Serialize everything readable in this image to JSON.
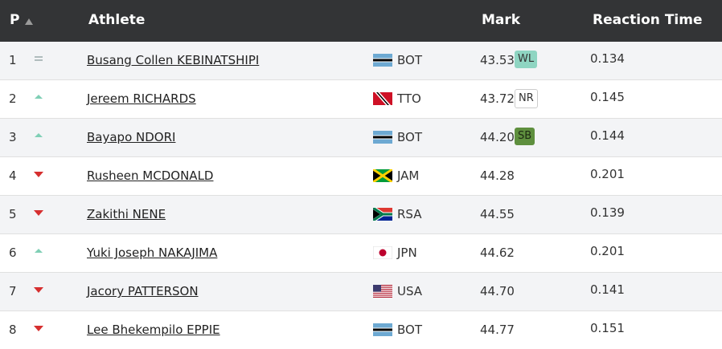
{
  "table": {
    "headers": [
      "P",
      "Athlete",
      "Mark",
      "Reaction Time"
    ],
    "rows": [
      {
        "position": "1",
        "trend": "same",
        "athlete": "Busang Collen KEBINATSHIPI",
        "country": "BOT",
        "mark": "43.53",
        "badge": "WL",
        "reaction": "0.134"
      },
      {
        "position": "2",
        "trend": "up",
        "athlete": "Jereem RICHARDS",
        "country": "TTO",
        "mark": "43.72",
        "badge": "NR",
        "reaction": "0.145"
      },
      {
        "position": "3",
        "trend": "up",
        "athlete": "Bayapo NDORI",
        "country": "BOT",
        "mark": "44.20",
        "badge": "SB",
        "reaction": "0.144"
      },
      {
        "position": "4",
        "trend": "down",
        "athlete": "Rusheen MCDONALD",
        "country": "JAM",
        "mark": "44.28",
        "reaction": "0.201"
      },
      {
        "position": "5",
        "trend": "down",
        "athlete": "Zakithi NENE",
        "country": "RSA",
        "mark": "44.55",
        "reaction": "0.139"
      },
      {
        "position": "6",
        "trend": "up",
        "athlete": "Yuki Joseph NAKAJIMA",
        "country": "JPN",
        "mark": "44.62",
        "reaction": "0.201"
      },
      {
        "position": "7",
        "trend": "down",
        "athlete": "Jacory PATTERSON",
        "country": "USA",
        "mark": "44.70",
        "reaction": "0.141"
      },
      {
        "position": "8",
        "trend": "down",
        "athlete": "Lee Bhekempilo EPPIE",
        "country": "BOT",
        "mark": "44.77",
        "reaction": "0.151"
      }
    ]
  }
}
